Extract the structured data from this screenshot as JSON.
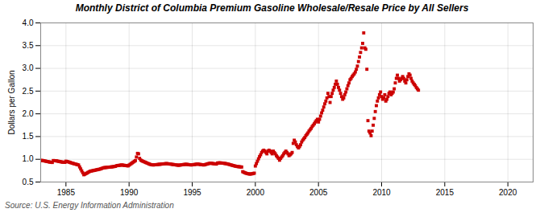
{
  "chart_data": {
    "type": "scatter",
    "title": "Monthly District of Columbia Premium Gasoline Wholesale/Resale Price by All Sellers",
    "ylabel": "Dollars per Gallon",
    "source": "Source: U.S. Energy Information Administration",
    "color": "#CC0000",
    "marker": "square",
    "grid": true,
    "xlim": [
      1983,
      2022
    ],
    "ylim": [
      0.5,
      4.0
    ],
    "xticks": [
      1985,
      1990,
      1995,
      2000,
      2005,
      2010,
      2015,
      2020
    ],
    "yticks": [
      0.5,
      {
        "value": 1.0,
        "label": "1.0"
      },
      1.5,
      {
        "value": 2.0,
        "label": "2.0"
      },
      2.5,
      {
        "value": 3.0,
        "label": "3.0"
      },
      3.5,
      {
        "value": 4.0,
        "label": "4.0"
      }
    ],
    "x": [
      1983.0,
      1983.083,
      1983.167,
      1983.25,
      1983.333,
      1983.417,
      1983.5,
      1983.583,
      1983.667,
      1983.75,
      1983.833,
      1983.917,
      1984.0,
      1984.083,
      1984.167,
      1984.25,
      1984.333,
      1984.417,
      1984.5,
      1984.583,
      1984.667,
      1984.75,
      1984.833,
      1984.917,
      1985.0,
      1985.083,
      1985.167,
      1985.25,
      1985.333,
      1985.417,
      1985.5,
      1985.583,
      1985.667,
      1985.75,
      1985.833,
      1985.917,
      1986.0,
      1986.083,
      1986.167,
      1986.25,
      1986.333,
      1986.417,
      1986.5,
      1986.583,
      1986.667,
      1986.75,
      1986.833,
      1986.917,
      1987.0,
      1987.083,
      1987.167,
      1987.25,
      1987.333,
      1987.417,
      1987.5,
      1987.583,
      1987.667,
      1987.75,
      1987.833,
      1987.917,
      1988.0,
      1988.083,
      1988.167,
      1988.25,
      1988.333,
      1988.417,
      1988.5,
      1988.583,
      1988.667,
      1988.75,
      1988.833,
      1988.917,
      1989.0,
      1989.083,
      1989.167,
      1989.25,
      1989.333,
      1989.417,
      1989.5,
      1989.583,
      1989.667,
      1989.75,
      1989.833,
      1989.917,
      1990.0,
      1990.083,
      1990.167,
      1990.25,
      1990.333,
      1990.417,
      1990.5,
      1990.583,
      1990.667,
      1990.75,
      1990.833,
      1990.917,
      1991.0,
      1991.083,
      1991.167,
      1991.25,
      1991.333,
      1991.417,
      1991.5,
      1991.583,
      1991.667,
      1991.75,
      1991.833,
      1991.917,
      1992.0,
      1992.083,
      1992.167,
      1992.25,
      1992.333,
      1992.417,
      1992.5,
      1992.583,
      1992.667,
      1992.75,
      1992.833,
      1992.917,
      1993.0,
      1993.083,
      1993.167,
      1993.25,
      1993.333,
      1993.417,
      1993.5,
      1993.583,
      1993.667,
      1993.75,
      1993.833,
      1993.917,
      1994.0,
      1994.083,
      1994.167,
      1994.25,
      1994.333,
      1994.417,
      1994.5,
      1994.583,
      1994.667,
      1994.75,
      1994.833,
      1994.917,
      1995.0,
      1995.083,
      1995.167,
      1995.25,
      1995.333,
      1995.417,
      1995.5,
      1995.583,
      1995.667,
      1995.75,
      1995.833,
      1995.917,
      1996.0,
      1996.083,
      1996.167,
      1996.25,
      1996.333,
      1996.417,
      1996.5,
      1996.583,
      1996.667,
      1996.75,
      1996.833,
      1996.917,
      1997.0,
      1997.083,
      1997.167,
      1997.25,
      1997.333,
      1997.417,
      1997.5,
      1997.583,
      1997.667,
      1997.75,
      1997.833,
      1997.917,
      1998.0,
      1998.083,
      1998.167,
      1998.25,
      1998.333,
      1998.417,
      1998.5,
      1998.583,
      1998.667,
      1998.75,
      1998.833,
      1998.917,
      1999.0,
      1999.083,
      1999.167,
      1999.25,
      1999.333,
      1999.417,
      1999.5,
      1999.583,
      1999.667,
      1999.75,
      1999.833,
      1999.917,
      2000.0,
      2000.083,
      2000.167,
      2000.25,
      2000.333,
      2000.417,
      2000.5,
      2000.583,
      2000.667,
      2000.75,
      2000.833,
      2000.917,
      2001.0,
      2001.083,
      2001.167,
      2001.25,
      2001.333,
      2001.417,
      2001.5,
      2001.583,
      2001.667,
      2001.75,
      2001.833,
      2001.917,
      2002.0,
      2002.083,
      2002.167,
      2002.25,
      2002.333,
      2002.417,
      2002.5,
      2002.583,
      2002.667,
      2002.75,
      2002.833,
      2002.917,
      2003.0,
      2003.083,
      2003.167,
      2003.25,
      2003.333,
      2003.417,
      2003.5,
      2003.583,
      2003.667,
      2003.75,
      2003.833,
      2003.917,
      2004.0,
      2004.083,
      2004.167,
      2004.25,
      2004.333,
      2004.417,
      2004.5,
      2004.583,
      2004.667,
      2004.75,
      2004.833,
      2004.917,
      2005.0,
      2005.083,
      2005.167,
      2005.25,
      2005.333,
      2005.417,
      2005.5,
      2005.583,
      2005.667,
      2005.75,
      2005.833,
      2005.917,
      2006.0,
      2006.083,
      2006.167,
      2006.25,
      2006.333,
      2006.417,
      2006.5,
      2006.583,
      2006.667,
      2006.75,
      2006.833,
      2006.917,
      2007.0,
      2007.083,
      2007.167,
      2007.25,
      2007.333,
      2007.417,
      2007.5,
      2007.583,
      2007.667,
      2007.75,
      2007.833,
      2007.917,
      2008.0,
      2008.083,
      2008.167,
      2008.25,
      2008.333,
      2008.417,
      2008.5,
      2008.583,
      2008.667,
      2008.75,
      2008.833,
      2008.917,
      2009.0,
      2009.083,
      2009.167,
      2009.25,
      2009.333,
      2009.417,
      2009.5,
      2009.583,
      2009.667,
      2009.75,
      2009.833,
      2009.917,
      2010.0,
      2010.083,
      2010.167,
      2010.25,
      2010.333,
      2010.417,
      2010.5,
      2010.583,
      2010.667,
      2010.75,
      2010.833,
      2010.917,
      2011.0,
      2011.083,
      2011.167,
      2011.25,
      2011.333,
      2011.417,
      2011.5,
      2011.583,
      2011.667,
      2011.75,
      2011.833,
      2011.917,
      2012.0,
      2012.083,
      2012.167,
      2012.25,
      2012.333,
      2012.417,
      2012.5,
      2012.583,
      2012.667,
      2012.75,
      2012.833,
      2012.917
    ],
    "values": [
      0.975,
      0.975,
      0.972,
      0.968,
      0.962,
      0.958,
      0.952,
      0.948,
      0.942,
      0.938,
      0.935,
      0.93,
      0.972,
      0.97,
      0.968,
      0.965,
      0.96,
      0.955,
      0.95,
      0.945,
      0.94,
      0.938,
      0.935,
      0.932,
      0.958,
      0.952,
      0.945,
      0.938,
      0.93,
      0.922,
      0.915,
      0.908,
      0.9,
      0.895,
      0.888,
      0.882,
      0.875,
      0.832,
      0.788,
      0.745,
      0.702,
      0.66,
      0.672,
      0.685,
      0.698,
      0.712,
      0.725,
      0.738,
      0.742,
      0.748,
      0.752,
      0.758,
      0.762,
      0.768,
      0.772,
      0.778,
      0.782,
      0.79,
      0.798,
      0.808,
      0.815,
      0.818,
      0.82,
      0.822,
      0.825,
      0.828,
      0.83,
      0.832,
      0.835,
      0.838,
      0.842,
      0.845,
      0.858,
      0.862,
      0.865,
      0.868,
      0.872,
      0.875,
      0.872,
      0.868,
      0.865,
      0.862,
      0.858,
      0.855,
      0.872,
      0.888,
      0.905,
      0.922,
      0.938,
      0.955,
      0.972,
      1.05,
      1.13,
      1.12,
      1.02,
      0.985,
      0.968,
      0.958,
      0.948,
      0.938,
      0.928,
      0.918,
      0.908,
      0.898,
      0.888,
      0.882,
      0.878,
      0.875,
      0.878,
      0.88,
      0.882,
      0.885,
      0.888,
      0.89,
      0.892,
      0.895,
      0.898,
      0.9,
      0.902,
      0.905,
      0.905,
      0.902,
      0.898,
      0.895,
      0.892,
      0.888,
      0.885,
      0.882,
      0.878,
      0.875,
      0.872,
      0.868,
      0.872,
      0.875,
      0.878,
      0.882,
      0.885,
      0.888,
      0.89,
      0.888,
      0.885,
      0.882,
      0.878,
      0.875,
      0.878,
      0.882,
      0.885,
      0.888,
      0.892,
      0.895,
      0.892,
      0.888,
      0.885,
      0.882,
      0.878,
      0.875,
      0.882,
      0.888,
      0.895,
      0.902,
      0.908,
      0.915,
      0.912,
      0.908,
      0.905,
      0.902,
      0.898,
      0.895,
      0.918,
      0.92,
      0.922,
      0.92,
      0.918,
      0.915,
      0.912,
      0.908,
      0.905,
      0.9,
      0.895,
      0.888,
      0.882,
      0.875,
      0.868,
      0.862,
      0.855,
      0.85,
      0.845,
      0.84,
      0.838,
      0.835,
      0.832,
      0.83,
      0.728,
      0.715,
      0.705,
      0.695,
      0.688,
      0.682,
      0.678,
      0.675,
      0.678,
      0.682,
      0.688,
      0.695,
      0.852,
      0.905,
      0.958,
      1.01,
      1.06,
      1.1,
      1.15,
      1.18,
      1.2,
      1.18,
      1.15,
      1.12,
      1.18,
      1.2,
      1.18,
      1.15,
      1.12,
      1.18,
      1.15,
      1.12,
      1.08,
      1.05,
      1.02,
      0.98,
      1.02,
      1.05,
      1.08,
      1.12,
      1.15,
      1.18,
      1.15,
      1.12,
      1.08,
      1.1,
      1.12,
      1.15,
      1.35,
      1.42,
      1.38,
      1.32,
      1.28,
      1.25,
      1.28,
      1.32,
      1.38,
      1.42,
      1.45,
      1.48,
      1.52,
      1.55,
      1.58,
      1.62,
      1.65,
      1.68,
      1.72,
      1.75,
      1.78,
      1.82,
      1.85,
      1.88,
      1.82,
      1.88,
      1.95,
      2.02,
      2.08,
      2.15,
      2.22,
      2.28,
      2.35,
      2.45,
      2.38,
      2.25,
      2.38,
      2.45,
      2.52,
      2.58,
      2.65,
      2.72,
      2.65,
      2.58,
      2.52,
      2.45,
      2.38,
      2.32,
      2.35,
      2.42,
      2.48,
      2.55,
      2.62,
      2.68,
      2.75,
      2.78,
      2.82,
      2.85,
      2.88,
      2.92,
      2.98,
      3.05,
      3.15,
      3.25,
      3.35,
      3.45,
      3.55,
      3.78,
      3.45,
      3.42,
      2.98,
      1.85,
      1.62,
      1.58,
      1.52,
      1.62,
      1.75,
      1.9,
      2.05,
      2.18,
      2.28,
      2.35,
      2.42,
      2.48,
      2.38,
      2.32,
      2.35,
      2.42,
      2.28,
      2.32,
      2.38,
      2.45,
      2.48,
      2.42,
      2.45,
      2.48,
      2.55,
      2.68,
      2.78,
      2.85,
      2.78,
      2.72,
      2.75,
      2.78,
      2.82,
      2.78,
      2.72,
      2.68,
      2.75,
      2.82,
      2.88,
      2.85,
      2.78,
      2.72,
      2.68,
      2.65,
      2.62,
      2.58,
      2.55,
      2.52
    ]
  }
}
